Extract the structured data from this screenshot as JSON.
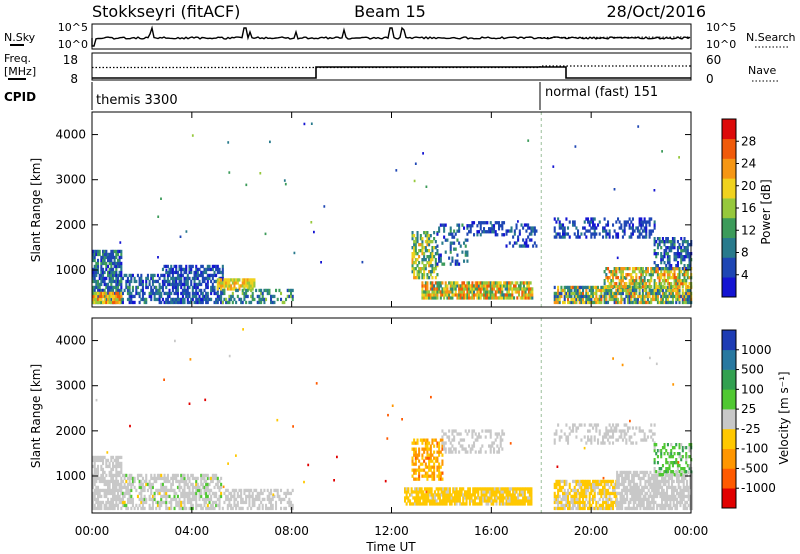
{
  "header": {
    "station": "Stokkseyri (fitACF)",
    "beam": "Beam 15",
    "date": "28/Oct/2016"
  },
  "noise_panel": {
    "left_label": "N.Sky",
    "right_label": "N.Search",
    "left_ticks": [
      "10^5",
      "10^0"
    ],
    "right_ticks": [
      "10^5",
      "10^0"
    ]
  },
  "freq_panel": {
    "left_label_1": "Freq.",
    "left_label_2": "[MHz]",
    "right_label": "Nave",
    "left_ticks": [
      "18",
      "8"
    ],
    "right_ticks": [
      "60",
      "0"
    ]
  },
  "cpid_panel": {
    "label": "CPID",
    "mode1": "themis 3300",
    "mode2": "normal (fast) 151"
  },
  "power_panel": {
    "ylabel": "Slant Range [km]",
    "yticks": [
      "4000",
      "3000",
      "2000",
      "1000"
    ],
    "colorbar_label": "Power [dB]",
    "colorbar_ticks": [
      "28",
      "24",
      "20",
      "16",
      "12",
      "8",
      "4"
    ]
  },
  "velocity_panel": {
    "ylabel": "Slant Range [km]",
    "yticks": [
      "4000",
      "3000",
      "2000",
      "1000"
    ],
    "colorbar_label": "Velocity [m s⁻¹]",
    "colorbar_ticks": [
      "1000",
      "500",
      "100",
      "25",
      "-25",
      "-100",
      "-500",
      "-1000"
    ]
  },
  "xaxis": {
    "label": "Time UT",
    "ticks": [
      "00:00",
      "04:00",
      "08:00",
      "12:00",
      "16:00",
      "20:00",
      "00:00"
    ]
  },
  "chart_data": [
    {
      "type": "heatmap",
      "name": "Power",
      "x_range_hours": [
        0,
        24
      ],
      "y_range_km": [
        180,
        4500
      ],
      "value_unit": "dB",
      "colorbar_range": [
        0,
        32
      ],
      "colors": [
        "#1414d2",
        "#1e46b4",
        "#287a8c",
        "#3c9b5a",
        "#96c83c",
        "#f0d21e",
        "#f59614",
        "#f05a0a",
        "#dc0a0a"
      ],
      "regions": [
        {
          "t0": 0.0,
          "t1": 1.2,
          "r0": 250,
          "r1": 1400,
          "density": 0.75,
          "vmin": 2,
          "vmax": 14
        },
        {
          "t0": 0.0,
          "t1": 1.2,
          "r0": 250,
          "r1": 500,
          "density": 0.9,
          "vmin": 14,
          "vmax": 28
        },
        {
          "t0": 1.2,
          "t1": 2.8,
          "r0": 250,
          "r1": 900,
          "density": 0.55,
          "vmin": 2,
          "vmax": 12
        },
        {
          "t0": 2.8,
          "t1": 5.2,
          "r0": 250,
          "r1": 1100,
          "density": 0.65,
          "vmin": 2,
          "vmax": 10
        },
        {
          "t0": 5.0,
          "t1": 6.5,
          "r0": 550,
          "r1": 800,
          "density": 0.85,
          "vmin": 16,
          "vmax": 24
        },
        {
          "t0": 5.2,
          "t1": 8.0,
          "r0": 250,
          "r1": 550,
          "density": 0.5,
          "vmin": 4,
          "vmax": 16
        },
        {
          "t0": 12.8,
          "t1": 13.8,
          "r0": 800,
          "r1": 1800,
          "density": 0.6,
          "vmin": 8,
          "vmax": 22
        },
        {
          "t0": 13.8,
          "t1": 15.0,
          "r0": 1100,
          "r1": 2000,
          "density": 0.3,
          "vmin": 2,
          "vmax": 12
        },
        {
          "t0": 15.0,
          "t1": 16.5,
          "r0": 1750,
          "r1": 2050,
          "density": 0.45,
          "vmin": 2,
          "vmax": 8
        },
        {
          "t0": 13.2,
          "t1": 17.6,
          "r0": 350,
          "r1": 700,
          "density": 0.85,
          "vmin": 10,
          "vmax": 28
        },
        {
          "t0": 16.5,
          "t1": 17.8,
          "r0": 1500,
          "r1": 2000,
          "density": 0.25,
          "vmin": 2,
          "vmax": 8
        },
        {
          "t0": 18.5,
          "t1": 22.5,
          "r0": 1700,
          "r1": 2100,
          "density": 0.35,
          "vmin": 2,
          "vmax": 8
        },
        {
          "t0": 18.5,
          "t1": 24.0,
          "r0": 250,
          "r1": 600,
          "density": 0.8,
          "vmin": 4,
          "vmax": 26
        },
        {
          "t0": 20.5,
          "t1": 24.0,
          "r0": 600,
          "r1": 1000,
          "density": 0.7,
          "vmin": 10,
          "vmax": 26
        },
        {
          "t0": 22.5,
          "t1": 24.0,
          "r0": 1000,
          "r1": 1700,
          "density": 0.5,
          "vmin": 2,
          "vmax": 12
        }
      ]
    },
    {
      "type": "heatmap",
      "name": "Velocity",
      "x_range_hours": [
        0,
        24
      ],
      "y_range_km": [
        180,
        4500
      ],
      "value_unit": "m s-1",
      "colorbar_range": [
        -1000,
        1000
      ],
      "colors": [
        "#e10000",
        "#ff5a00",
        "#ff9600",
        "#ffc800",
        "#c8c8c8",
        "#50c832",
        "#32a050",
        "#2878a0",
        "#1e3cb4"
      ],
      "regions": [
        {
          "t0": 0.0,
          "t1": 1.2,
          "r0": 250,
          "r1": 1400,
          "density": 0.7,
          "vmin": -50,
          "vmax": 60
        },
        {
          "t0": 1.2,
          "t1": 5.2,
          "r0": 250,
          "r1": 1000,
          "density": 0.6,
          "vmin": -120,
          "vmax": 150
        },
        {
          "t0": 5.2,
          "t1": 8.0,
          "r0": 250,
          "r1": 700,
          "density": 0.5,
          "vmin": -40,
          "vmax": 40
        },
        {
          "t0": 12.8,
          "t1": 14.0,
          "r0": 900,
          "r1": 1800,
          "density": 0.6,
          "vmin": -600,
          "vmax": -120
        },
        {
          "t0": 14.0,
          "t1": 16.5,
          "r0": 1500,
          "r1": 2000,
          "density": 0.35,
          "vmin": -40,
          "vmax": 30
        },
        {
          "t0": 12.5,
          "t1": 17.6,
          "r0": 350,
          "r1": 700,
          "density": 0.85,
          "vmin": -300,
          "vmax": -80
        },
        {
          "t0": 18.5,
          "t1": 22.5,
          "r0": 1700,
          "r1": 2100,
          "density": 0.3,
          "vmin": -40,
          "vmax": 30
        },
        {
          "t0": 18.5,
          "t1": 21.0,
          "r0": 250,
          "r1": 900,
          "density": 0.7,
          "vmin": -250,
          "vmax": -30
        },
        {
          "t0": 21.0,
          "t1": 24.0,
          "r0": 250,
          "r1": 1100,
          "density": 0.75,
          "vmin": -50,
          "vmax": 60
        },
        {
          "t0": 22.5,
          "t1": 24.0,
          "r0": 1000,
          "r1": 1700,
          "density": 0.45,
          "vmin": 50,
          "vmax": 400
        }
      ]
    }
  ]
}
